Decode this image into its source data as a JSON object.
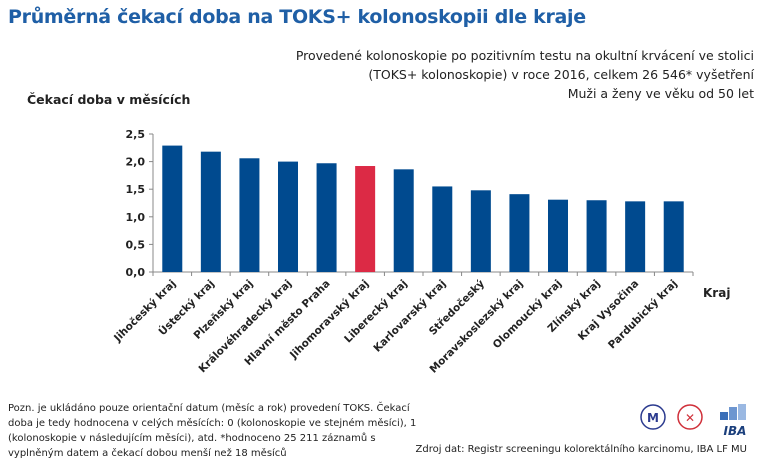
{
  "title": "Průměrná čekací doba na TOKS+ kolonoskopii dle kraje",
  "subtitle_lines": [
    "Provedené kolonoskopie po pozitivním testu na okultní krvácení ve stolici",
    "(TOKS+ kolonoskopie) v roce 2016, celkem 26 546* vyšetření",
    "Muži a ženy ve věku od 50 let"
  ],
  "note": "Pozn. je ukládáno pouze orientační datum (měsíc a rok) provedení TOKS.  Čekací doba je tedy hodnocena v celých měsících: 0 (kolonoskopie ve stejném měsíci), 1 (kolonoskopie v následujícím měsíci), atd. *hodnoceno 25 211 záznamů s vyplněným datem a čekací dobou menší než 18 měsíců",
  "source": "Zdroj dat: Registr screeningu kolorektálního karcinomu, IBA LF MU",
  "logos": [
    "MU",
    "LF MU",
    "IBA"
  ],
  "chart_data": {
    "type": "bar",
    "title": "",
    "ylabel": "Čekací doba v měsících",
    "xlabel": "Kraj",
    "ylim": [
      0,
      2.5
    ],
    "yticks": [
      "0,0",
      "0,5",
      "1,0",
      "1,5",
      "2,0",
      "2,5"
    ],
    "grid": false,
    "categories": [
      "Jihočeský kraj",
      "Ústecký kraj",
      "Plzeňský kraj",
      "Královéhradecký kraj",
      "Hlavní město Praha",
      "Jihomoravský kraj",
      "Liberecký kraj",
      "Karlovarský kraj",
      "Středočeský",
      "Moravskoslezský kraj",
      "Olomoucký kraj",
      "Zlínský kraj",
      "Kraj Vysočina",
      "Pardubický kraj"
    ],
    "values": [
      2.29,
      2.18,
      2.06,
      2.0,
      1.97,
      1.92,
      1.86,
      1.55,
      1.48,
      1.41,
      1.31,
      1.3,
      1.28,
      1.28
    ],
    "highlight_index": 5,
    "colors": {
      "bar": "#004a8f",
      "highlight": "#dc2a45"
    }
  }
}
